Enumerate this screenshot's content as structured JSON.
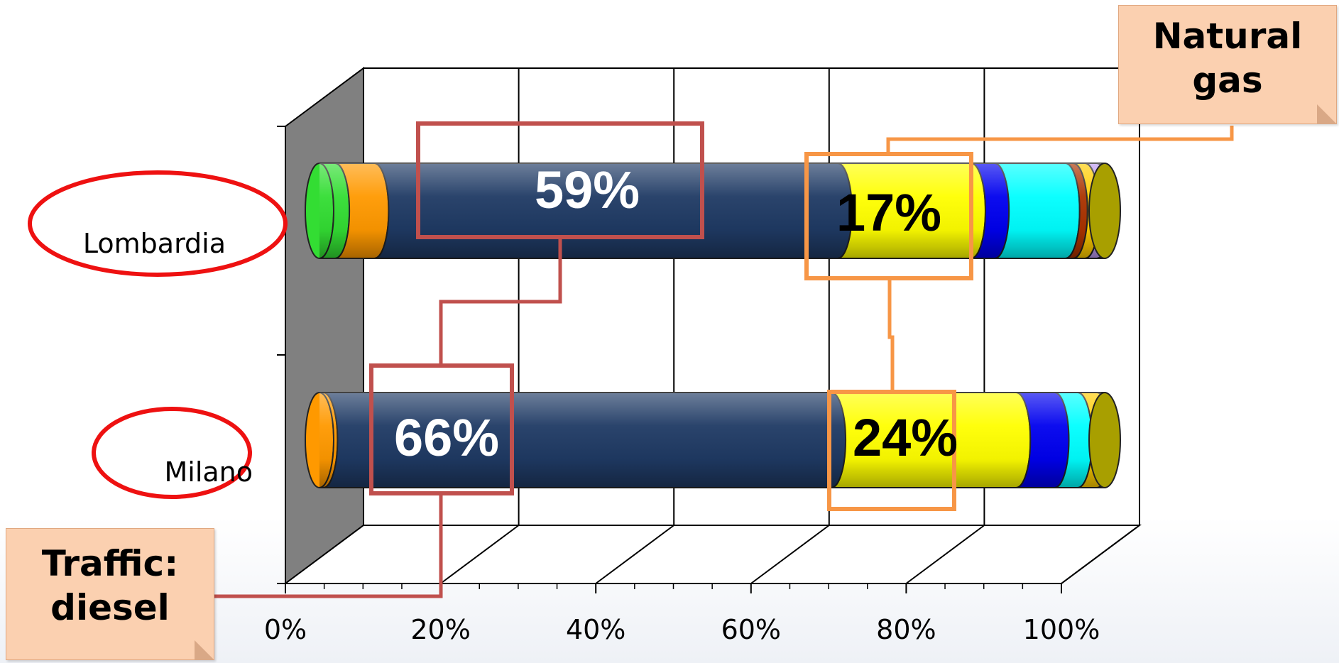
{
  "chart_data": {
    "type": "bar",
    "orientation": "horizontal",
    "stacked": "100%",
    "style": "3d-cylinder",
    "categories": [
      "Lombardia",
      "Milano"
    ],
    "x_ticks": [
      "0%",
      "20%",
      "40%",
      "60%",
      "80%",
      "100%"
    ],
    "xlim": [
      0,
      100
    ],
    "grid": true,
    "series": [
      {
        "color": "#33dd33",
        "values": [
          2,
          0
        ]
      },
      {
        "color": "#ff9900",
        "values": [
          5,
          0.5
        ]
      },
      {
        "color": "#1f3a64",
        "values": [
          59,
          66
        ]
      },
      {
        "color": "#ffff00",
        "values": [
          17,
          24
        ]
      },
      {
        "color": "#0000ee",
        "values": [
          3,
          5
        ]
      },
      {
        "color": "#00ffff",
        "values": [
          9,
          3
        ]
      },
      {
        "color": "#aa3300",
        "values": [
          1,
          0
        ]
      },
      {
        "color": "#ffcc00",
        "values": [
          1.5,
          2.5
        ]
      },
      {
        "color": "#bb99ee",
        "values": [
          1.5,
          0
        ]
      },
      {
        "color": "#ffff66",
        "values": [
          1,
          1
        ]
      },
      {
        "color": "#a89f00",
        "values": [
          0,
          0
        ]
      }
    ],
    "data_labels": {
      "diesel": [
        "59%",
        "66%"
      ],
      "gas": [
        "17%",
        "24%"
      ]
    },
    "annotations": {
      "diesel_callout": [
        "Traffic:",
        "diesel"
      ],
      "gas_callout": [
        "Natural",
        "gas"
      ]
    }
  },
  "colors": {
    "diesel_highlight": "#c0504d",
    "gas_highlight": "#f79646",
    "category_ellipse": "#ee1111"
  }
}
